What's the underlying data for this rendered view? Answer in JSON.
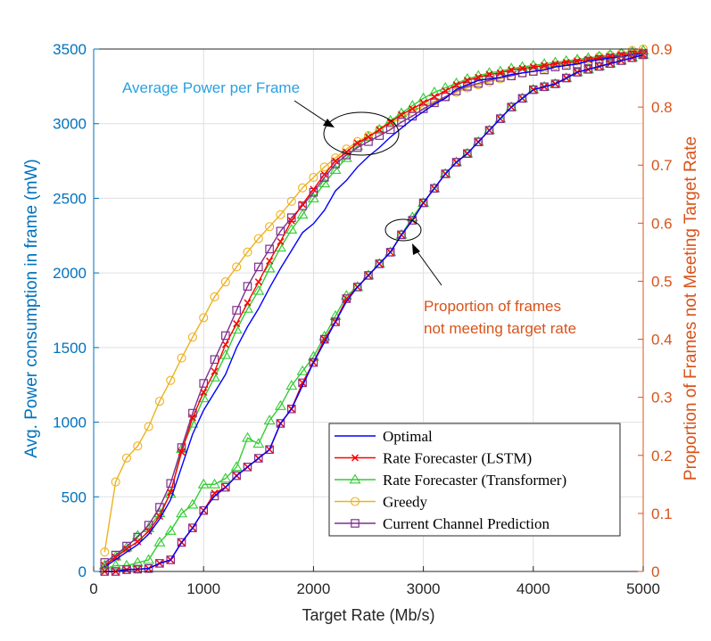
{
  "chart_data": {
    "type": "line",
    "xlabel": "Target Rate (Mb/s)",
    "ylabel_left": "Avg. Power consumption in frame (mW)",
    "ylabel_right": "Proportion of Frames not Meeting Target Rate",
    "xlim": [
      0,
      5000
    ],
    "ylim_left": [
      0,
      3500
    ],
    "ylim_right": [
      0,
      0.9
    ],
    "x_ticks": [
      "0",
      "1000",
      "2000",
      "3000",
      "4000",
      "5000"
    ],
    "y_ticks_left": [
      "0",
      "500",
      "1000",
      "1500",
      "2000",
      "2500",
      "3000",
      "3500"
    ],
    "y_ticks_right": [
      "0",
      "0.1",
      "0.2",
      "0.3",
      "0.4",
      "0.5",
      "0.6",
      "0.7",
      "0.8",
      "0.9"
    ],
    "grid": true,
    "legend_position": "bottom-right",
    "annotations": {
      "power": "Average Power per Frame",
      "proportion_line1": "Proportion of frames",
      "proportion_line2": "not meeting target rate"
    },
    "series": [
      {
        "name": "Optimal",
        "axis": "left",
        "color": "#0000FF",
        "marker": "none",
        "x": [
          100,
          200,
          300,
          400,
          500,
          600,
          700,
          800,
          900,
          1000,
          1100,
          1200,
          1300,
          1400,
          1500,
          1600,
          1700,
          1800,
          1900,
          2000,
          2100,
          2200,
          2300,
          2400,
          2500,
          2600,
          2700,
          2800,
          2900,
          3000,
          3100,
          3200,
          3300,
          3400,
          3500,
          3600,
          3700,
          3800,
          3900,
          4000,
          4100,
          4200,
          4300,
          4400,
          4500,
          4600,
          4700,
          4800,
          4900,
          5000
        ],
        "y": [
          30,
          80,
          130,
          180,
          250,
          350,
          480,
          700,
          920,
          1080,
          1200,
          1320,
          1500,
          1640,
          1760,
          1900,
          2030,
          2150,
          2270,
          2330,
          2420,
          2550,
          2620,
          2710,
          2780,
          2840,
          2910,
          2970,
          3030,
          3080,
          3130,
          3170,
          3230,
          3260,
          3290,
          3300,
          3310,
          3330,
          3340,
          3350,
          3360,
          3380,
          3390,
          3400,
          3420,
          3430,
          3440,
          3450,
          3460,
          3470
        ]
      },
      {
        "name": "Rate Forecaster (LSTM)",
        "axis": "left",
        "color": "#FF0000",
        "marker": "x",
        "x": [
          100,
          200,
          300,
          400,
          500,
          600,
          700,
          800,
          900,
          1000,
          1100,
          1200,
          1300,
          1400,
          1500,
          1600,
          1700,
          1800,
          1900,
          2000,
          2100,
          2200,
          2300,
          2400,
          2500,
          2600,
          2700,
          2800,
          2900,
          3000,
          3100,
          3200,
          3300,
          3400,
          3500,
          3600,
          3700,
          3800,
          3900,
          4000,
          4100,
          4200,
          4300,
          4400,
          4500,
          4600,
          4700,
          4800,
          4900,
          5000
        ],
        "y": [
          40,
          95,
          150,
          200,
          270,
          370,
          530,
          800,
          1030,
          1200,
          1340,
          1520,
          1660,
          1800,
          1940,
          2080,
          2210,
          2350,
          2460,
          2560,
          2660,
          2750,
          2810,
          2870,
          2910,
          2960,
          3010,
          3060,
          3100,
          3140,
          3180,
          3220,
          3260,
          3290,
          3310,
          3330,
          3340,
          3360,
          3370,
          3380,
          3390,
          3400,
          3410,
          3420,
          3430,
          3440,
          3450,
          3460,
          3470,
          3480
        ]
      },
      {
        "name": "Rate Forecaster (Transformer)",
        "axis": "left",
        "color": "#33CC33",
        "marker": "triangle",
        "x": [
          100,
          200,
          300,
          400,
          500,
          600,
          700,
          800,
          900,
          1000,
          1100,
          1200,
          1300,
          1400,
          1500,
          1600,
          1700,
          1800,
          1900,
          2000,
          2100,
          2200,
          2300,
          2400,
          2500,
          2600,
          2700,
          2800,
          2900,
          3000,
          3100,
          3200,
          3300,
          3400,
          3500,
          3600,
          3700,
          3800,
          3900,
          4000,
          4100,
          4200,
          4300,
          4400,
          4500,
          4600,
          4700,
          4800,
          4900,
          5000
        ],
        "y": [
          40,
          100,
          160,
          240,
          290,
          390,
          520,
          820,
          990,
          1160,
          1300,
          1450,
          1620,
          1760,
          1880,
          2030,
          2170,
          2290,
          2390,
          2500,
          2600,
          2690,
          2770,
          2850,
          2910,
          2960,
          3020,
          3070,
          3120,
          3170,
          3210,
          3240,
          3270,
          3300,
          3320,
          3340,
          3350,
          3370,
          3380,
          3390,
          3400,
          3410,
          3420,
          3430,
          3440,
          3450,
          3460,
          3470,
          3480,
          3490
        ]
      },
      {
        "name": "Greedy",
        "axis": "left",
        "color": "#EDB120",
        "marker": "circle",
        "x": [
          100,
          200,
          300,
          400,
          500,
          600,
          700,
          800,
          900,
          1000,
          1100,
          1200,
          1300,
          1400,
          1500,
          1600,
          1700,
          1800,
          1900,
          2000,
          2100,
          2200,
          2300,
          2400,
          2500,
          2600,
          2700,
          2800,
          2900,
          3000,
          3100,
          3200,
          3300,
          3400,
          3500,
          3600,
          3700,
          3800,
          3900,
          4000,
          4100,
          4200,
          4300,
          4400,
          4500,
          4600,
          4700,
          4800,
          4900,
          5000
        ],
        "y": [
          130,
          600,
          760,
          840,
          970,
          1140,
          1280,
          1430,
          1570,
          1700,
          1840,
          1940,
          2040,
          2140,
          2230,
          2310,
          2390,
          2480,
          2570,
          2640,
          2710,
          2770,
          2830,
          2880,
          2920,
          2960,
          3000,
          3040,
          3080,
          3120,
          3150,
          3180,
          3210,
          3240,
          3260,
          3280,
          3300,
          3320,
          3340,
          3350,
          3370,
          3390,
          3400,
          3420,
          3430,
          3450,
          3460,
          3470,
          3490,
          3500
        ]
      },
      {
        "name": "Current Channel Prediction",
        "axis": "left",
        "color": "#7E2F8E",
        "marker": "square",
        "x": [
          100,
          200,
          300,
          400,
          500,
          600,
          700,
          800,
          900,
          1000,
          1100,
          1200,
          1300,
          1400,
          1500,
          1600,
          1700,
          1800,
          1900,
          2000,
          2100,
          2200,
          2300,
          2400,
          2500,
          2600,
          2700,
          2800,
          2900,
          3000,
          3100,
          3200,
          3300,
          3400,
          3500,
          3600,
          3700,
          3800,
          3900,
          4000,
          4100,
          4200,
          4300,
          4400,
          4500,
          4600,
          4700,
          4800,
          4900,
          5000
        ],
        "y": [
          60,
          110,
          170,
          230,
          310,
          430,
          590,
          830,
          1060,
          1260,
          1420,
          1580,
          1750,
          1910,
          2040,
          2160,
          2280,
          2370,
          2450,
          2540,
          2640,
          2730,
          2790,
          2840,
          2880,
          2920,
          2960,
          3010,
          3050,
          3100,
          3140,
          3180,
          3220,
          3250,
          3270,
          3290,
          3310,
          3320,
          3340,
          3350,
          3360,
          3380,
          3390,
          3400,
          3420,
          3430,
          3440,
          3450,
          3460,
          3470
        ]
      },
      {
        "name": "Optimal",
        "axis": "right",
        "color": "#0000FF",
        "marker": "none",
        "legend": false,
        "x": [
          100,
          200,
          300,
          400,
          500,
          600,
          700,
          800,
          900,
          1000,
          1100,
          1200,
          1300,
          1400,
          1500,
          1600,
          1700,
          1800,
          1900,
          2000,
          2100,
          2200,
          2300,
          2400,
          2500,
          2600,
          2700,
          2800,
          2900,
          3000,
          3100,
          3200,
          3300,
          3400,
          3500,
          3600,
          3700,
          3800,
          3900,
          4000,
          4100,
          4200,
          4300,
          4400,
          4500,
          4600,
          4700,
          4800,
          4900,
          5000
        ],
        "y": [
          0.0,
          0.0,
          0.003,
          0.004,
          0.005,
          0.014,
          0.02,
          0.05,
          0.075,
          0.105,
          0.13,
          0.145,
          0.165,
          0.18,
          0.195,
          0.21,
          0.255,
          0.28,
          0.32,
          0.36,
          0.395,
          0.43,
          0.465,
          0.49,
          0.51,
          0.53,
          0.55,
          0.58,
          0.605,
          0.635,
          0.66,
          0.685,
          0.705,
          0.72,
          0.74,
          0.76,
          0.78,
          0.8,
          0.815,
          0.83,
          0.835,
          0.84,
          0.85,
          0.86,
          0.865,
          0.87,
          0.875,
          0.88,
          0.885,
          0.89
        ]
      },
      {
        "name": "Rate Forecaster (LSTM)",
        "axis": "right",
        "color": "#FF0000",
        "marker": "x",
        "legend": false,
        "x": [
          100,
          200,
          300,
          400,
          500,
          600,
          700,
          800,
          900,
          1000,
          1100,
          1200,
          1300,
          1400,
          1500,
          1600,
          1700,
          1800,
          1900,
          2000,
          2100,
          2200,
          2300,
          2400,
          2500,
          2600,
          2700,
          2800,
          2900,
          3000,
          3100,
          3200,
          3300,
          3400,
          3500,
          3600,
          3700,
          3800,
          3900,
          4000,
          4100,
          4200,
          4300,
          4400,
          4500,
          4600,
          4700,
          4800,
          4900,
          5000
        ],
        "y": [
          0.0,
          0.0,
          0.003,
          0.004,
          0.005,
          0.014,
          0.02,
          0.05,
          0.075,
          0.105,
          0.135,
          0.145,
          0.165,
          0.18,
          0.195,
          0.21,
          0.255,
          0.28,
          0.325,
          0.36,
          0.4,
          0.43,
          0.47,
          0.49,
          0.51,
          0.53,
          0.55,
          0.58,
          0.605,
          0.635,
          0.66,
          0.685,
          0.705,
          0.72,
          0.74,
          0.76,
          0.78,
          0.8,
          0.815,
          0.83,
          0.835,
          0.84,
          0.85,
          0.86,
          0.865,
          0.87,
          0.875,
          0.88,
          0.885,
          0.89
        ]
      },
      {
        "name": "Rate Forecaster (Transformer)",
        "axis": "right",
        "color": "#33CC33",
        "marker": "triangle",
        "legend": false,
        "x": [
          100,
          200,
          300,
          400,
          500,
          600,
          700,
          800,
          900,
          1000,
          1100,
          1200,
          1300,
          1400,
          1500,
          1600,
          1700,
          1800,
          1900,
          2000,
          2100,
          2200,
          2300,
          2400,
          2500,
          2600,
          2700,
          2800,
          2900,
          3000,
          3100,
          3200,
          3300,
          3400,
          3500,
          3600,
          3700,
          3800,
          3900,
          4000,
          4100,
          4200,
          4300,
          4400,
          4500,
          4600,
          4700,
          4800,
          4900,
          5000
        ],
        "y": [
          0.005,
          0.01,
          0.01,
          0.015,
          0.02,
          0.05,
          0.07,
          0.1,
          0.115,
          0.15,
          0.15,
          0.16,
          0.18,
          0.23,
          0.22,
          0.26,
          0.285,
          0.32,
          0.345,
          0.37,
          0.405,
          0.44,
          0.475,
          0.49,
          0.51,
          0.53,
          0.55,
          0.58,
          0.61,
          0.635,
          0.66,
          0.685,
          0.705,
          0.72,
          0.74,
          0.76,
          0.78,
          0.8,
          0.815,
          0.83,
          0.835,
          0.84,
          0.85,
          0.86,
          0.865,
          0.87,
          0.875,
          0.88,
          0.885,
          0.89
        ]
      },
      {
        "name": "Current Channel Prediction",
        "axis": "right",
        "color": "#7E2F8E",
        "marker": "square",
        "legend": false,
        "x": [
          100,
          200,
          300,
          400,
          500,
          600,
          700,
          800,
          900,
          1000,
          1100,
          1200,
          1300,
          1400,
          1500,
          1600,
          1700,
          1800,
          1900,
          2000,
          2100,
          2200,
          2300,
          2400,
          2500,
          2600,
          2700,
          2800,
          2900,
          3000,
          3100,
          3200,
          3300,
          3400,
          3500,
          3600,
          3700,
          3800,
          3900,
          4000,
          4100,
          4200,
          4300,
          4400,
          4500,
          4600,
          4700,
          4800,
          4900,
          5000
        ],
        "y": [
          0.0,
          0.0,
          0.003,
          0.004,
          0.005,
          0.014,
          0.02,
          0.05,
          0.075,
          0.105,
          0.13,
          0.145,
          0.165,
          0.18,
          0.195,
          0.21,
          0.255,
          0.28,
          0.325,
          0.36,
          0.4,
          0.43,
          0.47,
          0.49,
          0.51,
          0.53,
          0.55,
          0.58,
          0.605,
          0.635,
          0.66,
          0.685,
          0.705,
          0.72,
          0.74,
          0.76,
          0.78,
          0.8,
          0.815,
          0.83,
          0.835,
          0.84,
          0.85,
          0.86,
          0.865,
          0.87,
          0.875,
          0.88,
          0.885,
          0.89
        ]
      }
    ]
  }
}
